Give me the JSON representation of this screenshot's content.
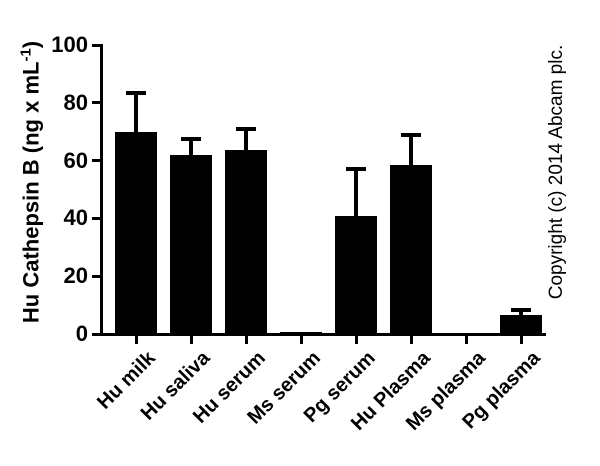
{
  "chart_data": {
    "type": "bar",
    "title": "",
    "categories": [
      "Hu milk",
      "Hu saliva",
      "Hu serum",
      "Ms serum",
      "Pg serum",
      "Hu Plasma",
      "Ms plasma",
      "Pg plasma"
    ],
    "values": [
      70,
      62,
      63.5,
      0.7,
      41,
      58.5,
      0,
      6.5
    ],
    "errors_upper": [
      83.5,
      67.5,
      71,
      null,
      57,
      69,
      null,
      8.3
    ],
    "error_type": "upper-only SD bars with caps",
    "ylabel_prefix": "Hu Cathepsin B (ng x mL",
    "ylabel_sup": "-1",
    "ylabel_suffix": ")",
    "xlabel": "",
    "yticks": [
      0,
      20,
      40,
      60,
      80,
      100
    ],
    "ylim": [
      0,
      100
    ],
    "grid": "off",
    "legend": "none",
    "bar_color": "#000000",
    "axis_color": "#000000",
    "background_color": "#ffffff",
    "watermark": "Copyright (c) 2014 Abcam plc."
  }
}
